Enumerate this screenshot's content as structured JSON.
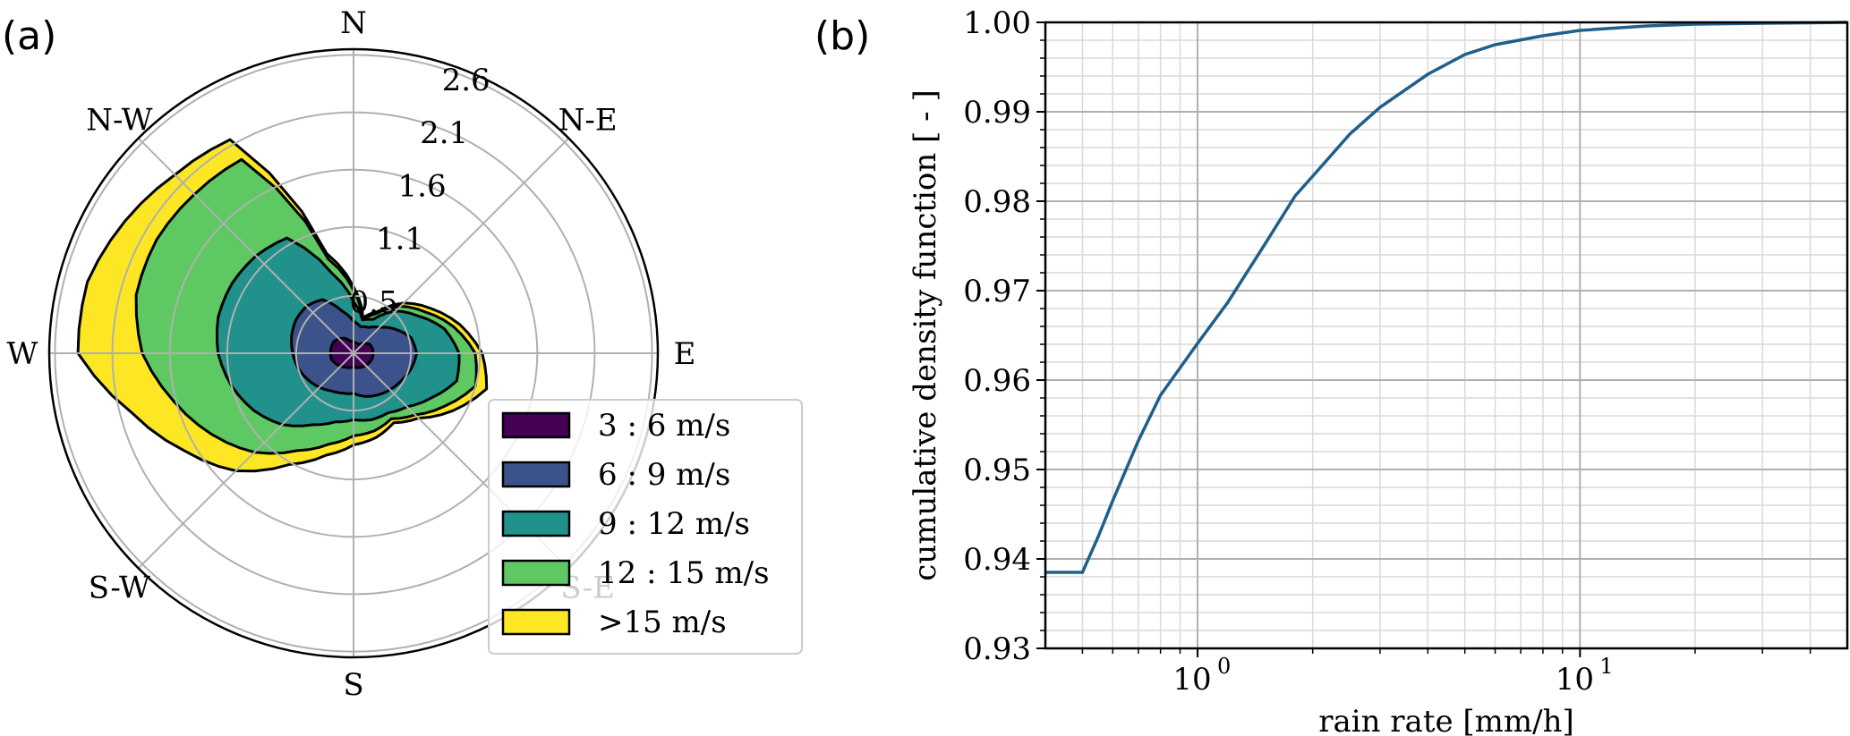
{
  "panel_a": {
    "label": "(a)"
  },
  "panel_b": {
    "label": "(b)"
  },
  "chart_data": [
    {
      "type": "area",
      "subtype": "polar-windrose",
      "directions": [
        "N",
        "N-E",
        "E",
        "S-E",
        "S",
        "S-W",
        "W",
        "N-W"
      ],
      "radial_ticks": [
        "0.5",
        "1.1",
        "1.6",
        "2.1",
        "2.6"
      ],
      "radial_tick_values": [
        0.5,
        1.1,
        1.6,
        2.1,
        2.6
      ],
      "rmax": 2.65,
      "angles_deg": [
        0,
        15,
        30,
        45,
        60,
        75,
        90,
        105,
        120,
        135,
        150,
        165,
        180,
        195,
        210,
        225,
        240,
        255,
        270,
        285,
        300,
        315,
        330,
        345
      ],
      "series": [
        {
          "name": "3 : 6 m/s",
          "color": "#440154",
          "values": [
            0.1,
            0.09,
            0.09,
            0.12,
            0.16,
            0.17,
            0.17,
            0.17,
            0.16,
            0.15,
            0.14,
            0.13,
            0.12,
            0.13,
            0.14,
            0.16,
            0.18,
            0.2,
            0.2,
            0.2,
            0.2,
            0.18,
            0.15,
            0.11
          ]
        },
        {
          "name": "6 : 9 m/s",
          "color": "#3b528b",
          "values": [
            0.28,
            0.24,
            0.26,
            0.32,
            0.42,
            0.52,
            0.55,
            0.52,
            0.48,
            0.45,
            0.42,
            0.39,
            0.35,
            0.36,
            0.38,
            0.42,
            0.46,
            0.5,
            0.53,
            0.56,
            0.58,
            0.58,
            0.54,
            0.38
          ]
        },
        {
          "name": "9 : 12 m/s",
          "color": "#21918c",
          "values": [
            0.45,
            0.3,
            0.34,
            0.52,
            0.65,
            0.82,
            0.92,
            0.93,
            0.78,
            0.66,
            0.6,
            0.6,
            0.58,
            0.62,
            0.72,
            0.88,
            1.0,
            1.1,
            1.18,
            1.22,
            1.22,
            1.2,
            1.16,
            0.72
          ]
        },
        {
          "name": "12 : 15 m/s",
          "color": "#5ec962",
          "values": [
            0.55,
            0.3,
            0.4,
            0.58,
            0.72,
            0.9,
            1.06,
            1.1,
            0.92,
            0.76,
            0.66,
            0.7,
            0.72,
            0.82,
            0.98,
            1.22,
            1.42,
            1.62,
            1.84,
            1.96,
            1.98,
            1.96,
            1.95,
            0.85
          ]
        },
        {
          "name": ">15 m/s",
          "color": "#fde725",
          "values": [
            0.58,
            0.32,
            0.42,
            0.62,
            0.78,
            0.96,
            1.12,
            1.2,
            1.0,
            0.8,
            0.7,
            0.76,
            0.8,
            0.92,
            1.12,
            1.45,
            1.7,
            2.0,
            2.4,
            2.4,
            2.3,
            2.2,
            2.15,
            0.9
          ]
        }
      ],
      "legend_position": "lower-right"
    },
    {
      "type": "line",
      "xlabel": "rain rate [mm/h]",
      "ylabel": "cumulative density function [ - ]",
      "xscale": "log",
      "xlim": [
        0.4,
        50
      ],
      "ylim": [
        0.93,
        1.0
      ],
      "xticks": [
        {
          "value": 1,
          "base": "10",
          "exp": "0"
        },
        {
          "value": 10,
          "base": "10",
          "exp": "1"
        }
      ],
      "yticks": [
        "0.93",
        "0.94",
        "0.95",
        "0.96",
        "0.97",
        "0.98",
        "0.99",
        "1.00"
      ],
      "grid": true,
      "color": "#1f5f8b",
      "series": [
        {
          "x": [
            0.4,
            0.5,
            0.55,
            0.6,
            0.7,
            0.8,
            1.0,
            1.2,
            1.5,
            1.8,
            2.0,
            2.5,
            3.0,
            4.0,
            5.0,
            6.0,
            8.0,
            10.0,
            15.0,
            20.0,
            30.0,
            50.0
          ],
          "y": [
            0.9385,
            0.9385,
            0.9425,
            0.9465,
            0.9532,
            0.9583,
            0.9641,
            0.9687,
            0.9752,
            0.9806,
            0.9828,
            0.9875,
            0.9905,
            0.9942,
            0.9964,
            0.9975,
            0.9985,
            0.9991,
            0.9996,
            0.9998,
            0.9999,
            1.0
          ]
        }
      ]
    }
  ]
}
